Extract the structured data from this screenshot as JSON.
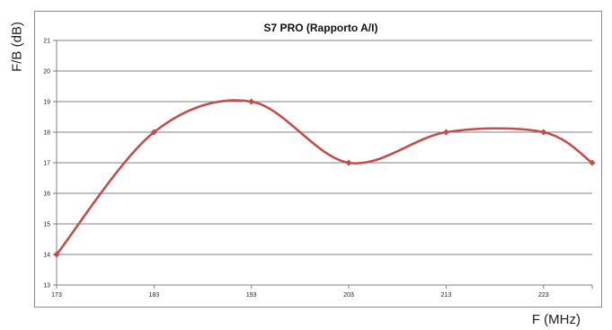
{
  "chart_data": {
    "type": "line",
    "title": "S7 PRO (Rapporto  A/I)",
    "xlabel": "F (MHz)",
    "ylabel": "F/B (dB)",
    "x": [
      173,
      183,
      193,
      203,
      213,
      223,
      228
    ],
    "series": [
      {
        "values": [
          14,
          18,
          19,
          17,
          18,
          18,
          17
        ]
      }
    ],
    "xticks": [
      "173",
      "183",
      "193",
      "203",
      "213",
      "223"
    ],
    "yticks": [
      "13",
      "14",
      "15",
      "16",
      "17",
      "18",
      "19",
      "20",
      "21"
    ],
    "xlim": [
      173,
      228
    ],
    "ylim": [
      13,
      21
    ],
    "grid": "horizontal",
    "smooth": true,
    "legend": "none",
    "colors": {
      "line": "#c0504d",
      "grid": "#808080",
      "frame": "#8c8c8c"
    }
  }
}
